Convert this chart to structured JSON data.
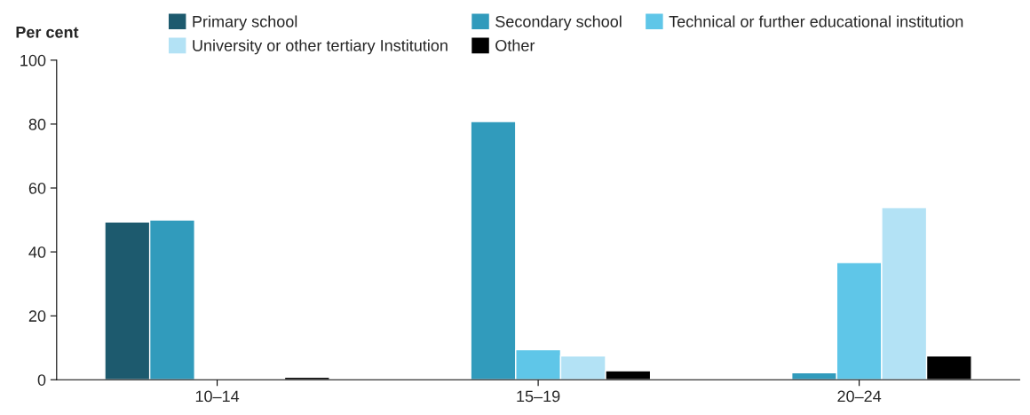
{
  "chart_data": {
    "type": "bar",
    "ylabel": "Per cent",
    "categories": [
      "10–14",
      "15–19",
      "20–24"
    ],
    "series": [
      {
        "name": "Primary school",
        "color": "#1d5a6e",
        "values": [
          49.4,
          null,
          null
        ]
      },
      {
        "name": "Secondary school",
        "color": "#319bbc",
        "values": [
          50,
          80.8,
          2.2
        ]
      },
      {
        "name": "Technical or further educational institution",
        "color": "#5fc6e8",
        "values": [
          null,
          9.4,
          36.7
        ]
      },
      {
        "name": "University or other tertiary Institution",
        "color": "#b3e2f5",
        "values": [
          null,
          7.5,
          53.9
        ]
      },
      {
        "name": "Other",
        "color": "#000000",
        "values": [
          0.8,
          2.8,
          7.5
        ]
      }
    ],
    "ylim": [
      0,
      100
    ],
    "yticks": [
      0,
      20,
      40,
      60,
      80,
      100
    ],
    "grid": false,
    "legend": "top"
  }
}
